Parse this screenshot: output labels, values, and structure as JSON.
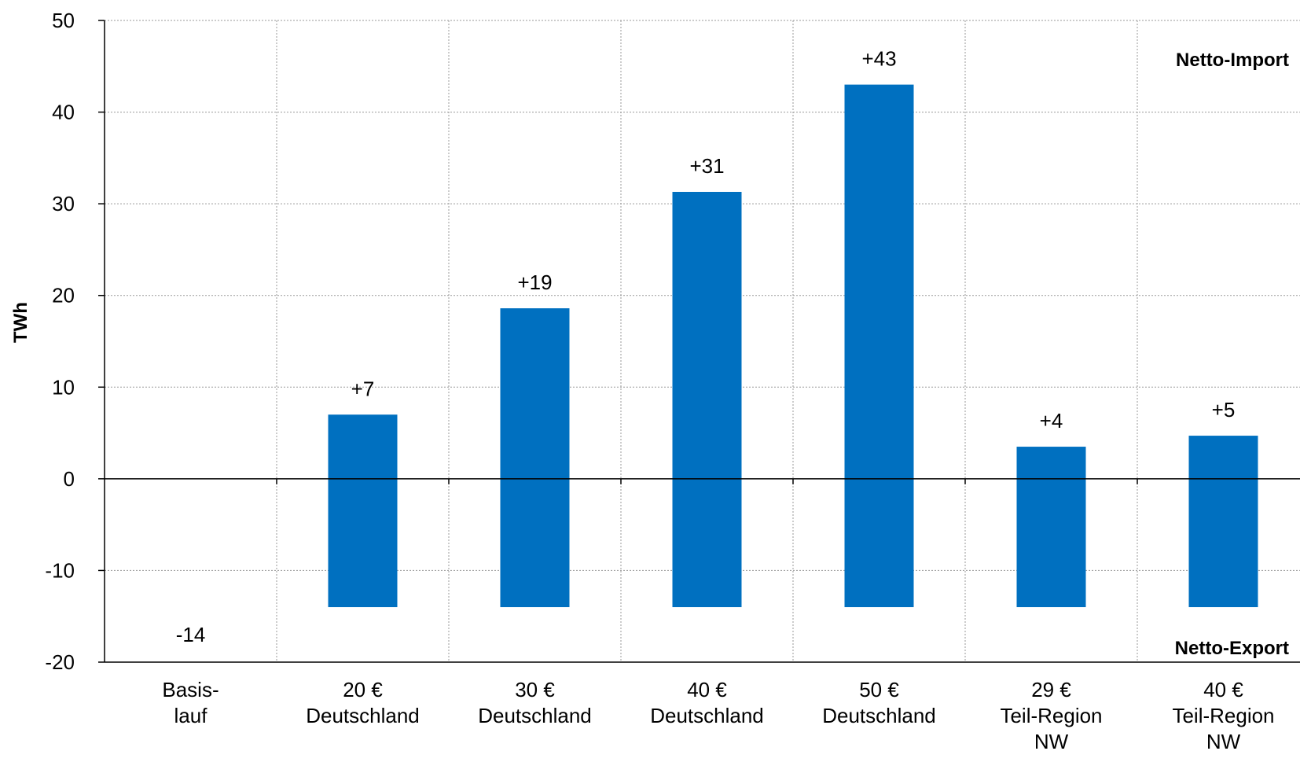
{
  "chart_data": {
    "type": "bar",
    "categories": [
      [
        "Basis-",
        "lauf"
      ],
      [
        "20 €",
        "Deutschland"
      ],
      [
        "30 €",
        "Deutschland"
      ],
      [
        "40 €",
        "Deutschland"
      ],
      [
        "50 €",
        "Deutschland"
      ],
      [
        "29 €",
        "Teil-Region",
        "NW"
      ],
      [
        "40 €",
        "Teil-Region",
        "NW"
      ]
    ],
    "values": [
      -14,
      7,
      18.6,
      31.3,
      43,
      3.5,
      4.7
    ],
    "bar_base": -14,
    "data_labels": [
      "-14",
      "+7",
      "+19",
      "+31",
      "+43",
      "+4",
      "+5"
    ],
    "colors": [
      "#ff0000",
      "#0070c0",
      "#0070c0",
      "#0070c0",
      "#0070c0",
      "#0070c0",
      "#0070c0"
    ],
    "ylabel": "TWh",
    "xlabel": "",
    "ylim": [
      -20,
      50
    ],
    "yticks": [
      -20,
      -10,
      0,
      10,
      20,
      30,
      40,
      50
    ],
    "grid": true,
    "annotations": {
      "top_right": "Netto-Import",
      "bottom_right": "Netto-Export"
    }
  }
}
